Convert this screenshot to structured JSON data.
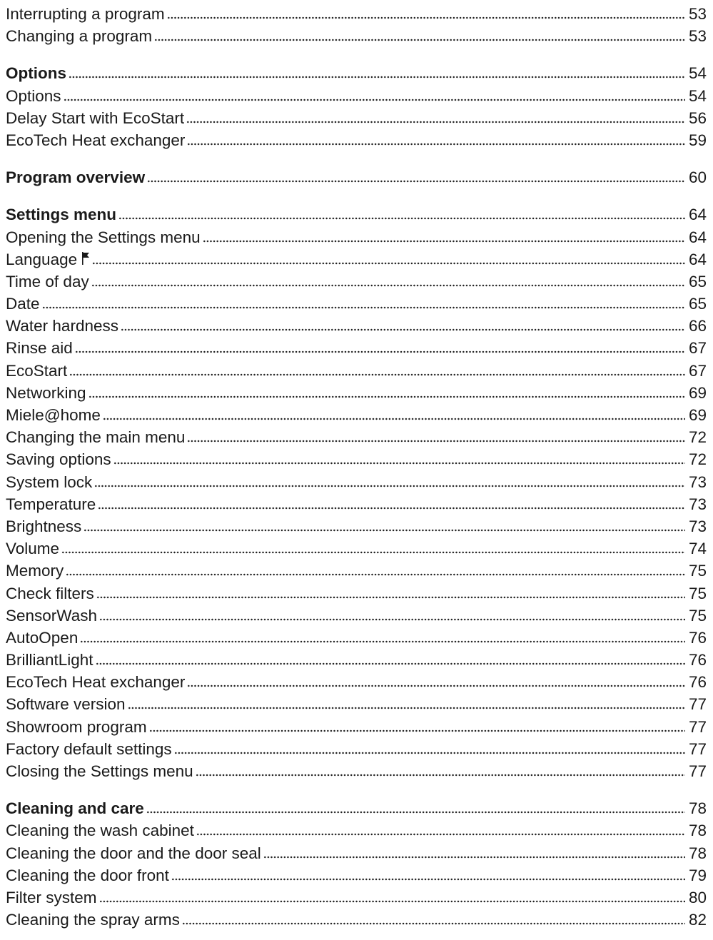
{
  "sections": [
    {
      "entries": [
        {
          "title": "Interrupting a program",
          "page": 53
        },
        {
          "title": "Changing a program",
          "page": 53
        }
      ]
    },
    {
      "entries": [
        {
          "title": "Options",
          "page": 54,
          "heading": true
        },
        {
          "title": "Options",
          "page": 54
        },
        {
          "title": "Delay Start with EcoStart",
          "page": 56
        },
        {
          "title": "EcoTech Heat exchanger",
          "page": 59
        }
      ]
    },
    {
      "entries": [
        {
          "title": "Program overview",
          "page": 60,
          "heading": true
        }
      ]
    },
    {
      "entries": [
        {
          "title": "Settings menu",
          "page": 64,
          "heading": true
        },
        {
          "title": "Opening the Settings menu",
          "page": 64
        },
        {
          "title": "Language",
          "page": 64,
          "icon": "flag"
        },
        {
          "title": "Time of day",
          "page": 65
        },
        {
          "title": "Date",
          "page": 65
        },
        {
          "title": "Water hardness",
          "page": 66
        },
        {
          "title": "Rinse aid",
          "page": 67
        },
        {
          "title": "EcoStart",
          "page": 67
        },
        {
          "title": "Networking",
          "page": 69
        },
        {
          "title": "Miele@home",
          "page": 69
        },
        {
          "title": "Changing the main menu",
          "page": 72
        },
        {
          "title": "Saving options",
          "page": 72
        },
        {
          "title": "System lock",
          "page": 73
        },
        {
          "title": "Temperature",
          "page": 73
        },
        {
          "title": "Brightness",
          "page": 73
        },
        {
          "title": "Volume",
          "page": 74
        },
        {
          "title": "Memory",
          "page": 75
        },
        {
          "title": "Check filters",
          "page": 75
        },
        {
          "title": "SensorWash",
          "page": 75
        },
        {
          "title": "AutoOpen",
          "page": 76
        },
        {
          "title": "BrilliantLight",
          "page": 76
        },
        {
          "title": "EcoTech Heat exchanger",
          "page": 76
        },
        {
          "title": "Software version",
          "page": 77
        },
        {
          "title": "Showroom program",
          "page": 77
        },
        {
          "title": "Factory default settings",
          "page": 77
        },
        {
          "title": "Closing the Settings menu",
          "page": 77
        }
      ]
    },
    {
      "entries": [
        {
          "title": "Cleaning and care",
          "page": 78,
          "heading": true
        },
        {
          "title": "Cleaning the wash cabinet",
          "page": 78
        },
        {
          "title": "Cleaning the door and the door seal",
          "page": 78
        },
        {
          "title": "Cleaning the door front",
          "page": 79
        },
        {
          "title": "Filter system",
          "page": 80
        },
        {
          "title": "Cleaning the spray arms",
          "page": 82
        }
      ]
    }
  ]
}
